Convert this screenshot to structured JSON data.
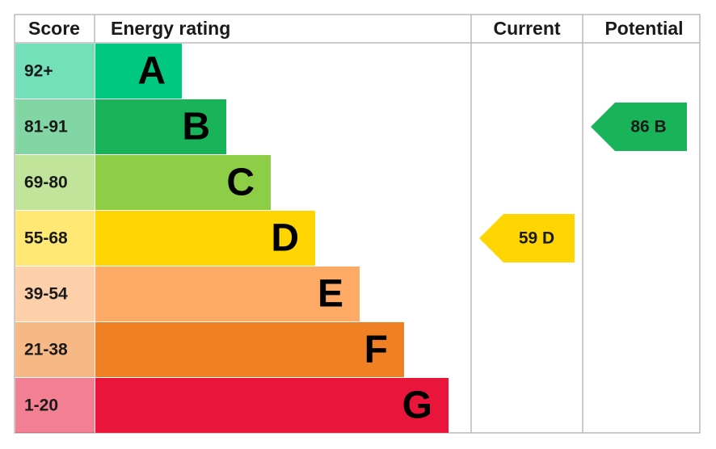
{
  "header": [
    "Score",
    "Energy rating",
    "Current",
    "Potential"
  ],
  "rows": [
    {
      "score": "92+",
      "rating": "A",
      "color": "#00c781"
    },
    {
      "score": "81-91",
      "rating": "B",
      "color": "#19b459"
    },
    {
      "score": "69-80",
      "rating": "C",
      "color": "#8dce46"
    },
    {
      "score": "55-68",
      "rating": "D",
      "color": "#ffd500"
    },
    {
      "score": "39-54",
      "rating": "E",
      "color": "#fcaa65"
    },
    {
      "score": "21-38",
      "rating": "F",
      "color": "#ef8023"
    },
    {
      "score": "1-20",
      "rating": "G",
      "color": "#e9153b"
    }
  ],
  "current": "59 D",
  "potential": "86 B"
}
